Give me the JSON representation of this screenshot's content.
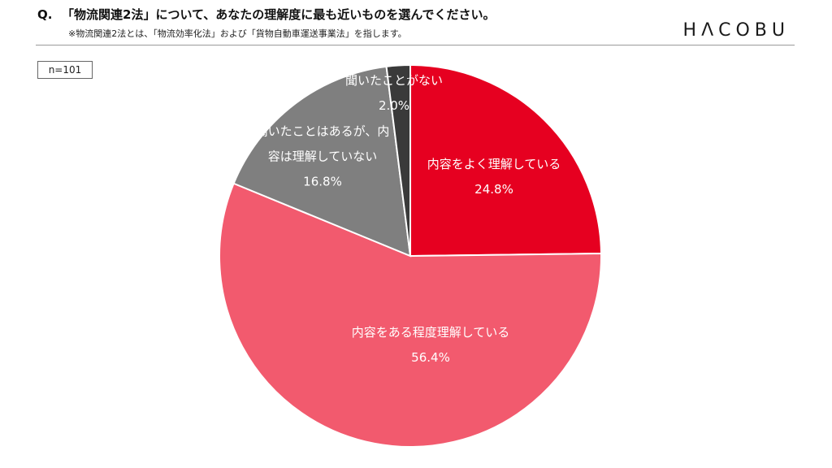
{
  "question": {
    "mark": "Q.",
    "text": "「物流関連2法」について、あなたの理解度に最も近いものを選んでください。",
    "note": "※物流関連2法とは、「物流効率化法」および「貨物自動車運送事業法」を指します。"
  },
  "logo": "HΛCOBU",
  "sample_size": "n=101",
  "chart_data": {
    "type": "pie",
    "title": "",
    "start": "12 o'clock, clockwise",
    "slices": [
      {
        "label_lines": [
          "内容をよく理解している"
        ],
        "value": 24.8,
        "value_label": "24.8%",
        "color": "#e60020"
      },
      {
        "label_lines": [
          "内容をある程度理解している"
        ],
        "value": 56.4,
        "value_label": "56.4%",
        "color": "#f25a6e"
      },
      {
        "label_lines": [
          "聞いたことはあるが、内",
          "容は理解していない"
        ],
        "value": 16.8,
        "value_label": "16.8%",
        "color": "#7f7f7f"
      },
      {
        "label_lines": [
          "聞いたことがない"
        ],
        "value": 2.0,
        "value_label": "2.0%",
        "color": "#3a3a3a"
      }
    ]
  }
}
